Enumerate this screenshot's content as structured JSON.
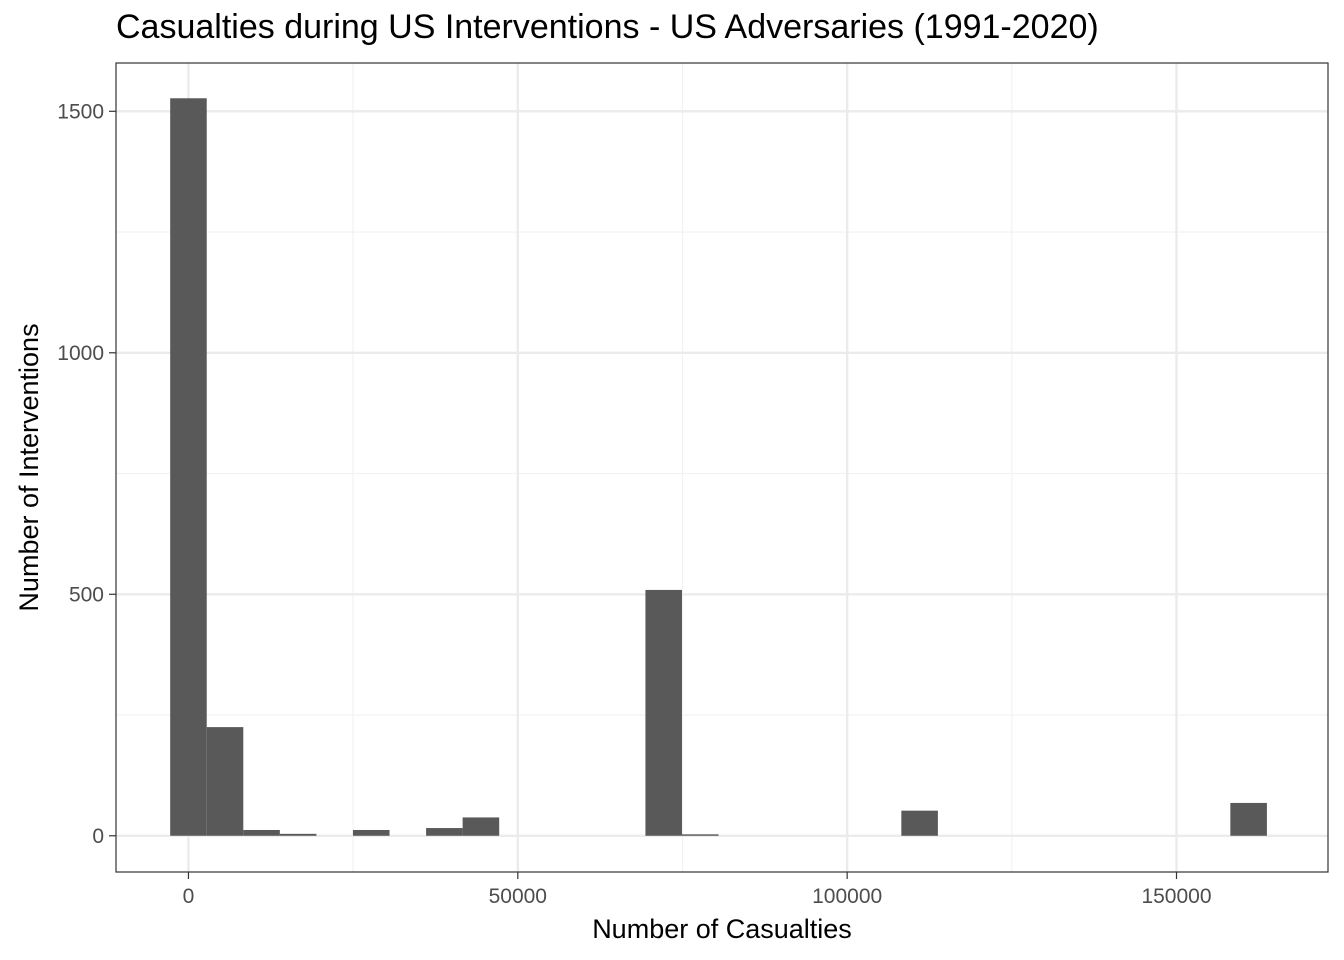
{
  "chart_data": {
    "type": "bar",
    "title": "Casualties during US Interventions - US Adversaries (1991-2020)",
    "xlabel": "Number of Casualties",
    "ylabel": "Number of Interventions",
    "xlim": [
      -11000,
      173000
    ],
    "ylim": [
      -75,
      1600
    ],
    "x_ticks": [
      0,
      50000,
      100000,
      150000
    ],
    "x_tick_labels": [
      "0",
      "50000",
      "100000",
      "150000"
    ],
    "x_minor_ticks": [
      25000,
      75000,
      125000
    ],
    "y_ticks": [
      0,
      500,
      1000,
      1500
    ],
    "y_tick_labels": [
      "0",
      "500",
      "1000",
      "1500"
    ],
    "y_minor_ticks": [
      250,
      750,
      1250
    ],
    "bin_width": 5550,
    "bins": [
      {
        "x": 0,
        "count": 1527
      },
      {
        "x": 5550,
        "count": 225
      },
      {
        "x": 11100,
        "count": 12
      },
      {
        "x": 16650,
        "count": 4
      },
      {
        "x": 27750,
        "count": 12
      },
      {
        "x": 38850,
        "count": 16
      },
      {
        "x": 44400,
        "count": 38
      },
      {
        "x": 72150,
        "count": 509
      },
      {
        "x": 77700,
        "count": 3
      },
      {
        "x": 111000,
        "count": 52
      },
      {
        "x": 160950,
        "count": 68
      }
    ],
    "bar_color": "#595959",
    "grid": true,
    "theme": "bw"
  }
}
